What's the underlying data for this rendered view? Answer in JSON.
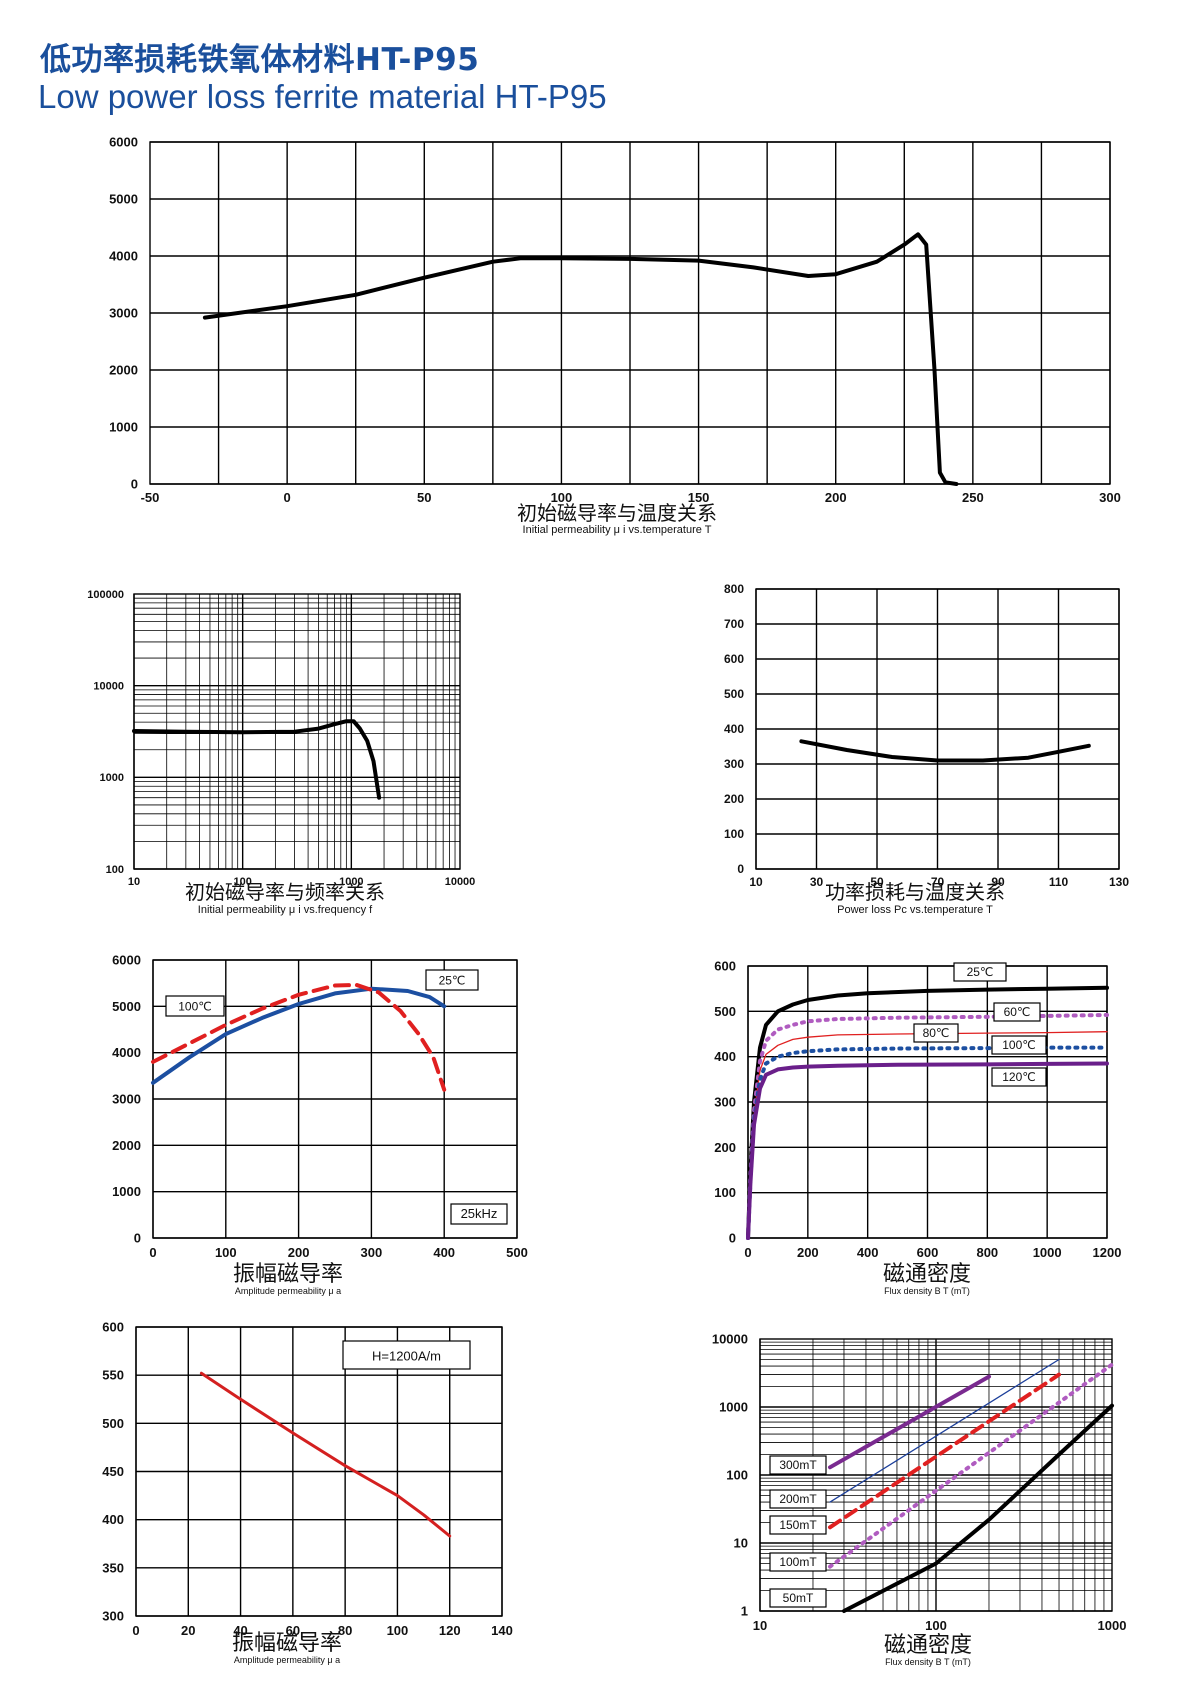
{
  "header": {
    "title_cn": "低功率损耗铁氧体材料HT-P95",
    "title_en": "Low power loss ferrite material HT-P95"
  },
  "chart_data": [
    {
      "id": "perm_temp",
      "type": "line",
      "title": "初始磁导率与温度关系",
      "subtitle": "Initial permeability  μ i vs.temperature T",
      "xlabel": "",
      "ylabel": "",
      "xlim": [
        -50,
        300
      ],
      "ylim": [
        0,
        6000
      ],
      "xticks": [
        -50,
        0,
        50,
        100,
        150,
        200,
        250,
        300
      ],
      "xtick_labels": [
        "-50",
        "0",
        "50",
        "100",
        "150",
        "200",
        "250",
        "300"
      ],
      "yticks": [
        0,
        1000,
        2000,
        3000,
        4000,
        5000,
        6000
      ],
      "ytick_labels": [
        "0",
        "1000",
        "2000",
        "3000",
        "4000",
        "5000",
        "6000"
      ],
      "grid_x": [
        -25,
        0,
        25,
        50,
        75,
        100,
        125,
        150,
        175,
        200,
        225,
        250,
        275,
        300
      ],
      "series": [
        {
          "name": "μi",
          "color": "#000000",
          "dash": "",
          "width": 4,
          "x": [
            -30,
            0,
            25,
            50,
            75,
            85,
            100,
            125,
            150,
            170,
            190,
            200,
            215,
            225,
            230,
            233,
            236,
            238,
            240,
            244
          ],
          "y": [
            2920,
            3120,
            3320,
            3620,
            3900,
            3960,
            3960,
            3950,
            3920,
            3800,
            3650,
            3680,
            3900,
            4200,
            4380,
            4200,
            2000,
            200,
            30,
            0
          ]
        }
      ]
    },
    {
      "id": "perm_freq",
      "type": "line",
      "title": "初始磁导率与频率关系",
      "subtitle": "Initial permeability  μ i vs.frequency f",
      "xscale": "log",
      "yscale": "log",
      "xlim": [
        10,
        10000
      ],
      "ylim": [
        100,
        100000
      ],
      "xticks": [
        10,
        100,
        1000,
        10000
      ],
      "xtick_labels": [
        "10",
        "100",
        "1000",
        "10000"
      ],
      "yticks": [
        100,
        1000,
        10000,
        100000
      ],
      "ytick_labels": [
        "100",
        "1000",
        "10000",
        "100000"
      ],
      "series": [
        {
          "name": "μi",
          "color": "#000000",
          "dash": "",
          "width": 4,
          "x": [
            10,
            30,
            100,
            300,
            500,
            700,
            900,
            1050,
            1200,
            1400,
            1600,
            1800
          ],
          "y": [
            3200,
            3150,
            3100,
            3150,
            3400,
            3800,
            4100,
            4100,
            3400,
            2500,
            1500,
            600
          ]
        }
      ]
    },
    {
      "id": "loss_temp",
      "type": "line",
      "title": "功率损耗与温度关系",
      "subtitle": "Power loss Pc vs.temperature T",
      "xlim": [
        10,
        130
      ],
      "ylim": [
        0,
        800
      ],
      "xticks": [
        10,
        30,
        50,
        70,
        90,
        110,
        130
      ],
      "xtick_labels": [
        "10",
        "30",
        "50",
        "70",
        "90",
        "110",
        "130"
      ],
      "yticks": [
        0,
        100,
        200,
        300,
        400,
        500,
        600,
        700,
        800
      ],
      "ytick_labels": [
        "0",
        "100",
        "200",
        "300",
        "400",
        "500",
        "600",
        "700",
        "800"
      ],
      "series": [
        {
          "name": "Pc",
          "color": "#000000",
          "dash": "",
          "width": 4,
          "x": [
            25,
            40,
            55,
            70,
            85,
            100,
            110,
            120
          ],
          "y": [
            365,
            340,
            320,
            310,
            310,
            318,
            335,
            352
          ]
        }
      ]
    },
    {
      "id": "amp_perm_flux",
      "type": "line",
      "title": "振幅磁导率",
      "subtitle": "Amplitude permeability  μ a",
      "xlim": [
        0,
        500
      ],
      "ylim": [
        0,
        6000
      ],
      "xticks": [
        0,
        100,
        200,
        300,
        400,
        500
      ],
      "xtick_labels": [
        "0",
        "100",
        "200",
        "300",
        "400",
        "500"
      ],
      "yticks": [
        0,
        1000,
        2000,
        3000,
        4000,
        5000,
        6000
      ],
      "ytick_labels": [
        "0",
        "1000",
        "2000",
        "3000",
        "4000",
        "5000",
        "6000"
      ],
      "annotations": [
        "25kHz"
      ],
      "series": [
        {
          "name": "25℃",
          "color": "#1c4fa1",
          "dash": "",
          "width": 4,
          "x": [
            0,
            50,
            100,
            150,
            200,
            250,
            300,
            350,
            380,
            400
          ],
          "y": [
            3350,
            3900,
            4400,
            4750,
            5050,
            5280,
            5380,
            5330,
            5200,
            5000
          ]
        },
        {
          "name": "100℃",
          "color": "#e02020",
          "dash": "14 8",
          "width": 4,
          "x": [
            0,
            50,
            100,
            150,
            200,
            250,
            280,
            310,
            340,
            365,
            385,
            400
          ],
          "y": [
            3800,
            4200,
            4600,
            4950,
            5250,
            5450,
            5460,
            5300,
            4900,
            4400,
            3900,
            3200
          ]
        }
      ]
    },
    {
      "id": "bh_curve",
      "type": "line",
      "title": "磁通密度",
      "subtitle": "Flux density B T (mT)",
      "xlim": [
        0,
        1200
      ],
      "ylim": [
        0,
        600
      ],
      "xticks": [
        0,
        200,
        400,
        600,
        800,
        1000,
        1200
      ],
      "xtick_labels": [
        "0",
        "200",
        "400",
        "600",
        "800",
        "1000",
        "1200"
      ],
      "yticks": [
        0,
        100,
        200,
        300,
        400,
        500,
        600
      ],
      "ytick_labels": [
        "0",
        "100",
        "200",
        "300",
        "400",
        "500",
        "600"
      ],
      "series": [
        {
          "name": "25℃",
          "color": "#000000",
          "dash": "",
          "width": 4,
          "x": [
            0,
            8,
            20,
            40,
            60,
            100,
            150,
            200,
            300,
            400,
            600,
            800,
            1000,
            1200
          ],
          "y": [
            0,
            150,
            300,
            420,
            470,
            500,
            515,
            525,
            535,
            540,
            545,
            548,
            550,
            552
          ]
        },
        {
          "name": "60℃",
          "color": "#b05cc0",
          "dash": "2 6",
          "width": 4,
          "x": [
            0,
            8,
            20,
            40,
            60,
            100,
            150,
            200,
            300,
            500,
            800,
            1000,
            1200
          ],
          "y": [
            0,
            140,
            280,
            390,
            435,
            460,
            470,
            478,
            483,
            486,
            488,
            490,
            492
          ]
        },
        {
          "name": "80℃",
          "color": "#e02020",
          "dash": "",
          "width": 1.3,
          "x": [
            0,
            8,
            20,
            40,
            60,
            100,
            150,
            200,
            300,
            500,
            800,
            1000,
            1200
          ],
          "y": [
            0,
            130,
            270,
            370,
            405,
            425,
            438,
            443,
            448,
            450,
            452,
            453,
            455
          ]
        },
        {
          "name": "100℃",
          "color": "#1c4fa1",
          "dash": "2 6",
          "width": 4,
          "x": [
            0,
            8,
            20,
            40,
            60,
            100,
            150,
            200,
            300,
            500,
            800,
            1000,
            1200
          ],
          "y": [
            0,
            125,
            260,
            350,
            385,
            400,
            408,
            412,
            416,
            418,
            419,
            420,
            420
          ]
        },
        {
          "name": "120℃",
          "color": "#6a1f8a",
          "dash": "",
          "width": 4,
          "x": [
            0,
            8,
            20,
            40,
            60,
            100,
            150,
            200,
            300,
            500,
            800,
            1000,
            1200
          ],
          "y": [
            0,
            120,
            250,
            330,
            360,
            372,
            376,
            378,
            380,
            382,
            383,
            384,
            385
          ]
        }
      ]
    },
    {
      "id": "amp_perm_temp",
      "type": "line",
      "title": "振幅磁导率",
      "subtitle": "Amplitude permeability  μ a",
      "xlim": [
        0,
        140
      ],
      "ylim": [
        300,
        600
      ],
      "xticks": [
        0,
        20,
        40,
        60,
        80,
        100,
        120,
        140
      ],
      "xtick_labels": [
        "0",
        "20",
        "40",
        "60",
        "80",
        "100",
        "120",
        "140"
      ],
      "yticks": [
        300,
        350,
        400,
        450,
        500,
        550,
        600
      ],
      "ytick_labels": [
        "300",
        "350",
        "400",
        "450",
        "500",
        "550",
        "600"
      ],
      "annotations": [
        "H=1200A/m"
      ],
      "series": [
        {
          "name": "μa",
          "color": "#d42020",
          "dash": "",
          "width": 3,
          "x": [
            25,
            40,
            60,
            80,
            100,
            110,
            120
          ],
          "y": [
            552,
            525,
            490,
            456,
            425,
            405,
            383
          ]
        }
      ]
    },
    {
      "id": "loss_flux",
      "type": "line",
      "title": "磁通密度",
      "subtitle": "Flux density B T (mT)",
      "xscale": "log",
      "yscale": "log",
      "xlim": [
        10,
        1000
      ],
      "ylim": [
        1,
        10000
      ],
      "xticks": [
        10,
        100,
        1000
      ],
      "xtick_labels": [
        "10",
        "100",
        "1000"
      ],
      "yticks": [
        1,
        10,
        100,
        1000,
        10000
      ],
      "ytick_labels": [
        "1",
        "10",
        "100",
        "1000",
        "10000"
      ],
      "series": [
        {
          "name": "300mT",
          "color": "#7a2a90",
          "dash": "",
          "width": 4,
          "x": [
            25,
            200
          ],
          "y": [
            130,
            2800
          ]
        },
        {
          "name": "200mT",
          "color": "#1c3f9a",
          "dash": "",
          "width": 1.3,
          "x": [
            25,
            500
          ],
          "y": [
            40,
            5000
          ]
        },
        {
          "name": "150mT",
          "color": "#e02020",
          "dash": "12 7",
          "width": 4,
          "x": [
            25,
            500
          ],
          "y": [
            17,
            3000
          ]
        },
        {
          "name": "100mT",
          "color": "#b05cc0",
          "dash": "2 6",
          "width": 4,
          "x": [
            25,
            1000
          ],
          "y": [
            4.5,
            4200
          ]
        },
        {
          "name": "50mT",
          "color": "#000000",
          "dash": "",
          "width": 4,
          "x": [
            30,
            100,
            200,
            500,
            1000
          ],
          "y": [
            1,
            5,
            22,
            200,
            1050
          ]
        }
      ]
    }
  ]
}
